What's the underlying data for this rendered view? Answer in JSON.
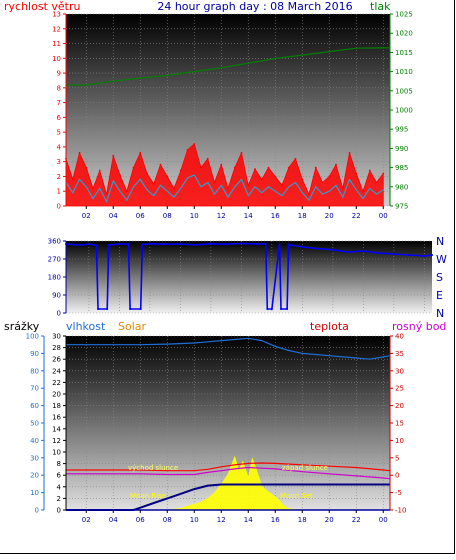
{
  "title": "24 hour graph day : 08 March 2016",
  "colors": {
    "wind": "#ff0000",
    "gust": "#ff0000",
    "avgwind": "#3399cc",
    "pressure": "#008000",
    "direction": "#0000ff",
    "rain": "#0000a0",
    "humidity": "#1e6fd9",
    "solar": "#ffff00",
    "temperature": "#ff0000",
    "dewpoint": "#cc00cc",
    "annotation": "#ffff00",
    "sunlabel": "#ffff66"
  },
  "panel1": {
    "left_label": "rychlost větru",
    "right_label": "tlak",
    "left_ticks": [
      "0",
      "1",
      "2",
      "3",
      "4",
      "5",
      "6",
      "7",
      "8",
      "9",
      "10",
      "11",
      "12",
      "13"
    ],
    "right_ticks": [
      "975",
      "980",
      "985",
      "990",
      "995",
      "1000",
      "1005",
      "1010",
      "1015",
      "1020",
      "1025"
    ],
    "x_ticks": [
      "02",
      "04",
      "06",
      "08",
      "10",
      "12",
      "14",
      "16",
      "18",
      "20",
      "22",
      "00"
    ]
  },
  "panel2": {
    "left_ticks": [
      "0",
      "90",
      "180",
      "270",
      "360"
    ],
    "compass": [
      "N",
      "W",
      "S",
      "E",
      "N"
    ],
    "x_ticks": []
  },
  "panel3": {
    "labels": {
      "rain": "srážky",
      "humidity": "vlhkost",
      "solar": "Solar",
      "temperature": "teplota",
      "dewpoint": "rosný bod"
    },
    "rain_ticks": [
      "0",
      "10",
      "20",
      "30",
      "40",
      "50",
      "60",
      "70",
      "80",
      "90",
      "100"
    ],
    "hum_ticks": [
      "0",
      "2",
      "4",
      "6",
      "8",
      "10",
      "12",
      "14",
      "16",
      "18",
      "20",
      "22",
      "24",
      "26",
      "28",
      "30"
    ],
    "temp_ticks": [
      "-10",
      "-5",
      "0",
      "5",
      "10",
      "15",
      "20",
      "25",
      "30",
      "35",
      "40"
    ],
    "x_ticks": [
      "02",
      "04",
      "06",
      "08",
      "10",
      "12",
      "14",
      "16",
      "18",
      "20",
      "22",
      "00"
    ],
    "annotations": {
      "sunrise": "východ slunce",
      "sunset": "západ slunce",
      "moonrise": "Moon Rise",
      "moonset": "Moon Set"
    }
  },
  "chart_data": [
    {
      "type": "line",
      "title": "24 hour graph day : 08 March 2016",
      "x_unit": "hour of day (01:00 to 00:00)",
      "xlim": [
        0.5,
        24.5
      ],
      "series": [
        {
          "name": "rychlost větru",
          "axis": "left",
          "style": "filled-spikes",
          "x": [
            0.5,
            1,
            1.5,
            2,
            2.5,
            3,
            3.5,
            4,
            4.5,
            5,
            5.5,
            6,
            6.5,
            7,
            7.5,
            8,
            8.5,
            9,
            9.5,
            10,
            10.5,
            11,
            11.5,
            12,
            12.5,
            13,
            13.5,
            14,
            14.5,
            15,
            15.5,
            16,
            16.5,
            17,
            17.5,
            18,
            18.5,
            19,
            19.5,
            20,
            20.5,
            21,
            21.5,
            22,
            22.5,
            23,
            23.5,
            24
          ],
          "y": [
            3.2,
            1.8,
            3.6,
            2.6,
            1.2,
            2.4,
            0.8,
            3.4,
            2.1,
            1.0,
            2.6,
            3.6,
            2.2,
            1.5,
            2.8,
            2.0,
            1.2,
            2.4,
            3.8,
            4.2,
            2.6,
            3.2,
            1.6,
            2.8,
            1.2,
            2.6,
            3.6,
            1.4,
            2.5,
            1.8,
            2.6,
            2.0,
            1.4,
            2.6,
            3.2,
            1.8,
            0.8,
            2.6,
            1.6,
            2.0,
            2.8,
            1.2,
            3.6,
            2.2,
            1.0,
            2.4,
            1.6,
            2.2
          ]
        },
        {
          "name": "avg wind",
          "axis": "left",
          "x": [
            0.5,
            1,
            1.5,
            2,
            2.5,
            3,
            3.5,
            4,
            4.5,
            5,
            5.5,
            6,
            6.5,
            7,
            7.5,
            8,
            8.5,
            9,
            9.5,
            10,
            10.5,
            11,
            11.5,
            12,
            12.5,
            13,
            13.5,
            14,
            14.5,
            15,
            15.5,
            16,
            16.5,
            17,
            17.5,
            18,
            18.5,
            19,
            19.5,
            20,
            20.5,
            21,
            21.5,
            22,
            22.5,
            23,
            23.5,
            24
          ],
          "y": [
            1.6,
            0.9,
            1.8,
            1.3,
            0.5,
            1.2,
            0.3,
            1.7,
            1.0,
            0.4,
            1.3,
            1.8,
            1.1,
            0.7,
            1.4,
            1.0,
            0.6,
            1.2,
            1.9,
            2.1,
            1.3,
            1.6,
            0.8,
            1.4,
            0.6,
            1.3,
            1.8,
            0.7,
            1.3,
            0.9,
            1.3,
            1.0,
            0.7,
            1.3,
            1.6,
            0.9,
            0.4,
            1.3,
            0.8,
            1.0,
            1.4,
            0.6,
            1.8,
            1.1,
            0.5,
            1.2,
            0.8,
            1.1
          ]
        },
        {
          "name": "tlak",
          "axis": "right",
          "x": [
            0.5,
            2,
            4,
            6,
            8,
            10,
            12,
            14,
            16,
            18,
            20,
            22,
            24.5
          ],
          "y": [
            1006.5,
            1006.5,
            1007.5,
            1008.3,
            1009.0,
            1010.0,
            1011.0,
            1012.2,
            1013.4,
            1014.3,
            1015.2,
            1016.1,
            1016.2
          ]
        }
      ],
      "ylim_left": [
        0,
        13
      ],
      "ylim_right": [
        975,
        1025
      ],
      "ylabel_left": "rychlost větru",
      "ylabel_right": "tlak"
    },
    {
      "type": "line",
      "title": "",
      "xlim": [
        0.5,
        24.5
      ],
      "ylim": [
        0,
        360
      ],
      "series": [
        {
          "name": "wind direction",
          "x": [
            0.5,
            1,
            1.5,
            2,
            2.5,
            2.6,
            3.2,
            3.3,
            4,
            4.6,
            4.7,
            5.4,
            5.5,
            6,
            7,
            8,
            9,
            10,
            11,
            12,
            13,
            13.6,
            13.7,
            14,
            14.5,
            14.6,
            15.0,
            15.1,
            16,
            17,
            18,
            19,
            20,
            21,
            22,
            23,
            24,
            24.5
          ],
          "y": [
            345,
            342,
            340,
            345,
            338,
            20,
            20,
            340,
            345,
            345,
            20,
            20,
            342,
            346,
            344,
            345,
            341,
            346,
            344,
            348,
            345,
            345,
            20,
            20,
            345,
            20,
            20,
            342,
            330,
            322,
            316,
            305,
            310,
            300,
            295,
            290,
            285,
            290
          ]
        }
      ]
    },
    {
      "type": "line",
      "title": "",
      "xlim": [
        0.5,
        24.5
      ],
      "series": [
        {
          "name": "srážky",
          "axis": "rain",
          "x": [
            0.5,
            24.5
          ],
          "y": [
            0,
            0
          ]
        },
        {
          "name": "vlhkost",
          "axis": "hum",
          "x": [
            0.5,
            2,
            4,
            6,
            8,
            10,
            11,
            12,
            13,
            14,
            15,
            16,
            17,
            18,
            20,
            22,
            23,
            24,
            24.5
          ],
          "y": [
            28.5,
            28.5,
            28.5,
            28.5,
            28.6,
            28.8,
            29,
            29.2,
            29.4,
            29.6,
            29.2,
            28.2,
            27.5,
            27,
            26.6,
            26.2,
            26,
            26.4,
            26.6
          ]
        },
        {
          "name": "Solar",
          "axis": "hum",
          "style": "area",
          "x": [
            0.5,
            6,
            7,
            8,
            9,
            10,
            10.5,
            11,
            11.5,
            12,
            12.5,
            13,
            13.3,
            13.6,
            14,
            14.3,
            14.6,
            15,
            15.5,
            16,
            16.3,
            16.6,
            17,
            18,
            24.5
          ],
          "y": [
            0,
            0,
            0,
            0,
            0.3,
            1.0,
            1.4,
            2.0,
            3.0,
            4.4,
            6.2,
            9.2,
            6.8,
            8.4,
            5.6,
            8.9,
            7.0,
            4.1,
            3.1,
            2.3,
            1.7,
            0.8,
            0.2,
            0,
            0
          ]
        },
        {
          "name": "teplota",
          "axis": "temp",
          "x": [
            0.5,
            2,
            4,
            6,
            8,
            10,
            11,
            12,
            13,
            14,
            15,
            16,
            17,
            18,
            20,
            22,
            24,
            24.5
          ],
          "y": [
            1.5,
            1.5,
            1.5,
            1.5,
            1.3,
            1.3,
            1.7,
            2.4,
            3.0,
            3.4,
            3.5,
            3.4,
            3.2,
            3.0,
            2.6,
            2.2,
            1.5,
            1.3
          ]
        },
        {
          "name": "rosný bod",
          "axis": "temp",
          "x": [
            0.5,
            2,
            4,
            6,
            8,
            10,
            11,
            12,
            13,
            14,
            15,
            16,
            17,
            18,
            20,
            22,
            24,
            24.5
          ],
          "y": [
            0.4,
            0.4,
            0.4,
            0.4,
            0.2,
            0.2,
            0.8,
            1.3,
            1.8,
            2.2,
            2.0,
            1.8,
            1.4,
            1.0,
            0.4,
            -0.2,
            -0.8,
            -1.0
          ]
        },
        {
          "name": "rain accumulated",
          "axis": "hum",
          "x": [
            0.5,
            5.5,
            6,
            7,
            8,
            9,
            10,
            11,
            12,
            24.5
          ],
          "y": [
            0,
            0,
            0.4,
            1.2,
            2.0,
            2.8,
            3.6,
            4.2,
            4.4,
            4.4
          ]
        }
      ],
      "ylim_rain": [
        0,
        100
      ],
      "ylim_hum": [
        0,
        30
      ],
      "ylim_temp": [
        -10,
        40
      ],
      "ylabel_rain": "srážky",
      "ylabel_hum": "vlhkost",
      "ylabel_temp": "teplota"
    }
  ]
}
